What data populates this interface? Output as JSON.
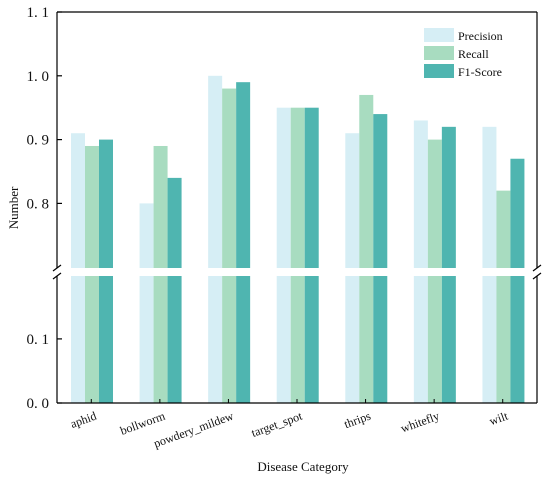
{
  "chart_data": {
    "type": "bar",
    "title": "",
    "xlabel": "Disease Category",
    "ylabel": "Number",
    "categories": [
      "aphid",
      "bollworm",
      "powdery_mildew",
      "target_spot",
      "thrips",
      "whitefly",
      "wilt"
    ],
    "series": [
      {
        "name": "Precision",
        "color": "#d6eef5",
        "values": [
          0.91,
          0.8,
          1.0,
          0.95,
          0.91,
          0.93,
          0.92
        ]
      },
      {
        "name": "Recall",
        "color": "#a8dcc0",
        "values": [
          0.89,
          0.89,
          0.98,
          0.95,
          0.97,
          0.9,
          0.82
        ]
      },
      {
        "name": "F1-Score",
        "color": "#4fb5b0",
        "values": [
          0.9,
          0.84,
          0.99,
          0.95,
          0.94,
          0.92,
          0.87
        ]
      }
    ],
    "y_axis": {
      "broken": true,
      "lower_range": [
        0.0,
        0.2
      ],
      "upper_range": [
        0.71,
        1.1
      ],
      "lower_ticks": [
        "0. 0",
        "0. 1"
      ],
      "upper_ticks": [
        "0. 8",
        "0. 9",
        "1. 0",
        "1. 1"
      ]
    },
    "legend": "top-right",
    "grid": false
  }
}
